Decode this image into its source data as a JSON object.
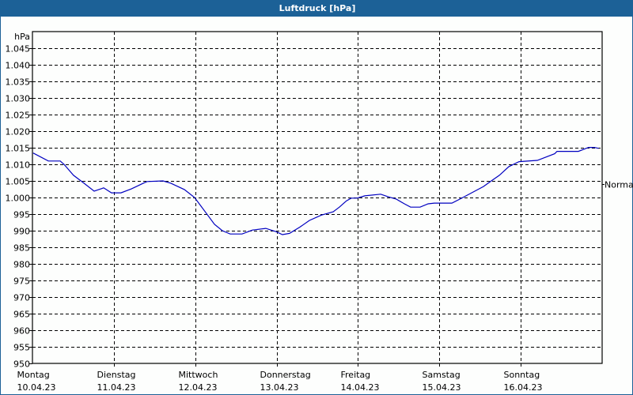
{
  "window": {
    "title": "Luftdruck [hPa]",
    "title_bar_color": "#1c6197"
  },
  "chart_data": {
    "type": "line",
    "title": "Luftdruck [hPa]",
    "xlabel": "",
    "ylabel": "hPa",
    "ylim": [
      950,
      1050
    ],
    "grid": true,
    "y_ticks": [
      {
        "value": 1045,
        "label": "1.045"
      },
      {
        "value": 1040,
        "label": "1.040"
      },
      {
        "value": 1035,
        "label": "1.035"
      },
      {
        "value": 1030,
        "label": "1.030"
      },
      {
        "value": 1025,
        "label": "1.025"
      },
      {
        "value": 1020,
        "label": "1.020"
      },
      {
        "value": 1015,
        "label": "1.015"
      },
      {
        "value": 1010,
        "label": "1.010"
      },
      {
        "value": 1005,
        "label": "1.005"
      },
      {
        "value": 1000,
        "label": "1.000"
      },
      {
        "value": 995,
        "label": "995"
      },
      {
        "value": 990,
        "label": "990"
      },
      {
        "value": 985,
        "label": "985"
      },
      {
        "value": 980,
        "label": "980"
      },
      {
        "value": 975,
        "label": "975"
      },
      {
        "value": 970,
        "label": "970"
      },
      {
        "value": 965,
        "label": "965"
      },
      {
        "value": 960,
        "label": "960"
      },
      {
        "value": 955,
        "label": "955"
      },
      {
        "value": 950,
        "label": "950"
      }
    ],
    "x_range_hours": [
      0,
      168
    ],
    "x_ticks": [
      {
        "hour": 0,
        "day": "Montag",
        "date": "10.04.23"
      },
      {
        "hour": 24,
        "day": "Dienstag",
        "date": "11.04.23"
      },
      {
        "hour": 48,
        "day": "Mittwoch",
        "date": "12.04.23"
      },
      {
        "hour": 72,
        "day": "Donnerstag",
        "date": "13.04.23"
      },
      {
        "hour": 96,
        "day": "Freitag",
        "date": "14.04.23"
      },
      {
        "hour": 120,
        "day": "Samstag",
        "date": "15.04.23"
      },
      {
        "hour": 144,
        "day": "Sonntag",
        "date": "16.04.23"
      }
    ],
    "reference": {
      "label": "Normal",
      "value": 1004
    },
    "series": [
      {
        "name": "Luftdruck",
        "color": "#0000c0",
        "points": [
          [
            0.2,
            1013.4
          ],
          [
            4.7,
            1011.0
          ],
          [
            8.2,
            1011.0
          ],
          [
            9.3,
            1010.0
          ],
          [
            12.1,
            1006.7
          ],
          [
            15.2,
            1004.3
          ],
          [
            18.2,
            1001.9
          ],
          [
            21.0,
            1002.9
          ],
          [
            23.3,
            1001.4
          ],
          [
            26.1,
            1001.4
          ],
          [
            29.2,
            1002.6
          ],
          [
            32.7,
            1004.3
          ],
          [
            33.8,
            1004.8
          ],
          [
            38.5,
            1005.0
          ],
          [
            40.8,
            1004.3
          ],
          [
            44.8,
            1002.4
          ],
          [
            47.8,
            1000.0
          ],
          [
            51.3,
            995.2
          ],
          [
            53.7,
            991.9
          ],
          [
            56.0,
            990.0
          ],
          [
            58.3,
            989.0
          ],
          [
            61.8,
            989.0
          ],
          [
            64.9,
            990.2
          ],
          [
            68.8,
            990.7
          ],
          [
            71.9,
            989.7
          ],
          [
            73.7,
            988.8
          ],
          [
            75.8,
            989.2
          ],
          [
            78.9,
            991.1
          ],
          [
            81.7,
            993.1
          ],
          [
            85.2,
            994.7
          ],
          [
            88.7,
            995.7
          ],
          [
            90.5,
            997.1
          ],
          [
            92.6,
            999.0
          ],
          [
            94.0,
            999.8
          ],
          [
            95.7,
            999.8
          ],
          [
            98.0,
            1000.5
          ],
          [
            102.7,
            1001.0
          ],
          [
            105.0,
            1000.2
          ],
          [
            107.3,
            999.5
          ],
          [
            109.7,
            998.1
          ],
          [
            111.5,
            997.1
          ],
          [
            114.3,
            997.1
          ],
          [
            116.7,
            998.1
          ],
          [
            118.5,
            998.3
          ],
          [
            123.7,
            998.3
          ],
          [
            126.0,
            999.5
          ],
          [
            129.5,
            1001.4
          ],
          [
            133.0,
            1003.3
          ],
          [
            135.3,
            1005.0
          ],
          [
            137.7,
            1006.7
          ],
          [
            140.5,
            1009.3
          ],
          [
            143.5,
            1010.8
          ],
          [
            148.9,
            1011.2
          ],
          [
            154.0,
            1013.2
          ],
          [
            154.7,
            1013.9
          ],
          [
            161.0,
            1013.9
          ],
          [
            164.0,
            1015.1
          ],
          [
            165.7,
            1015.1
          ],
          [
            167.0,
            1014.8
          ]
        ]
      }
    ]
  }
}
